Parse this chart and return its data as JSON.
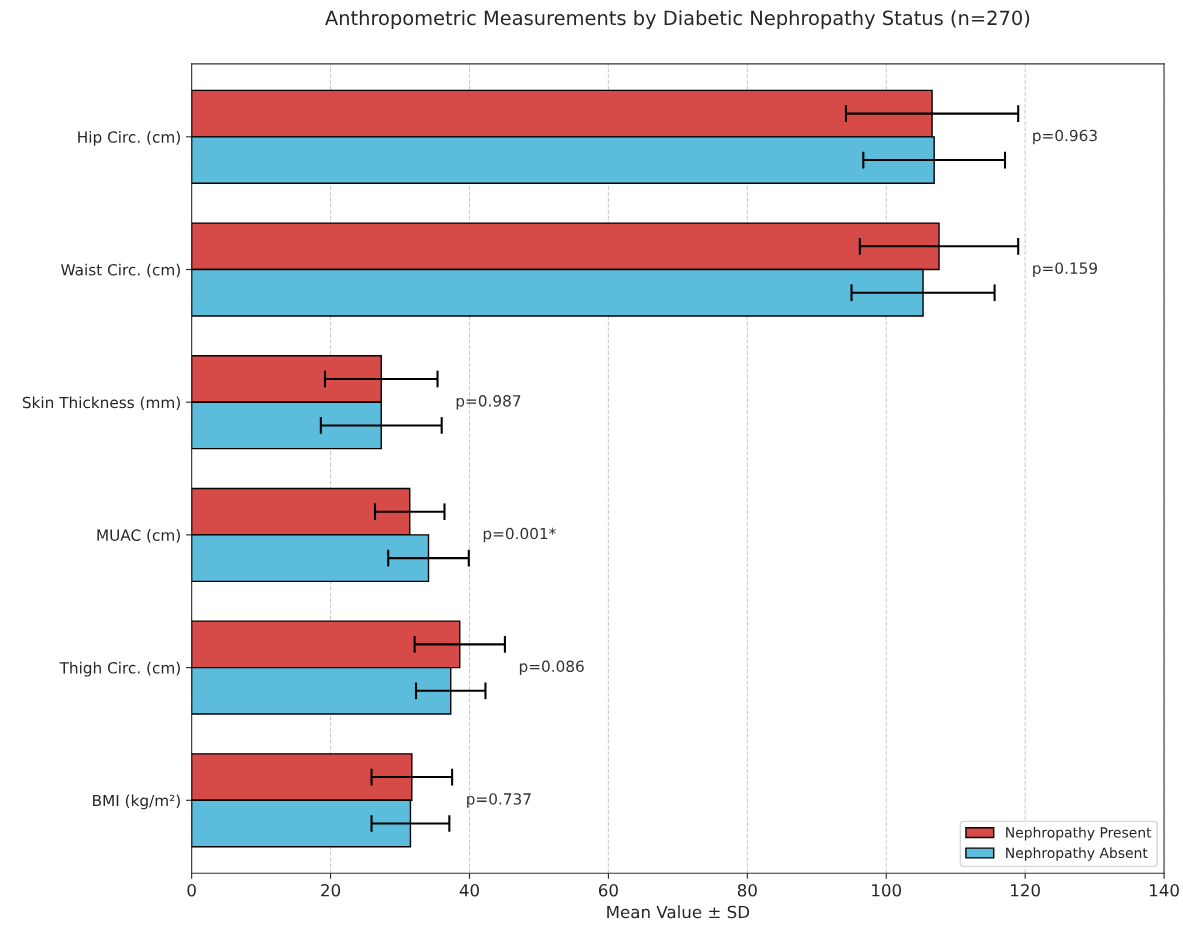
{
  "chart_data": {
    "type": "bar",
    "orientation": "horizontal",
    "title": "Anthropometric Measurements by Diabetic Nephropathy Status (n=270)",
    "xlabel": "Mean Value ± SD",
    "categories": [
      "Hip Circ. (cm)",
      "Waist Circ. (cm)",
      "Skin Thickness (mm)",
      "MUAC (cm)",
      "Thigh Circ. (cm)",
      "BMI (kg/m²)"
    ],
    "series": [
      {
        "name": "Nephropathy Present",
        "color": "#d64a48",
        "values": [
          106.6,
          107.6,
          27.3,
          31.4,
          38.6,
          31.7
        ],
        "errors": [
          12.4,
          11.4,
          8.1,
          5.0,
          6.5,
          5.8
        ]
      },
      {
        "name": "Nephropathy Absent",
        "color": "#5bbcdc",
        "values": [
          106.9,
          105.3,
          27.3,
          34.1,
          37.3,
          31.5
        ],
        "errors": [
          10.2,
          10.3,
          8.7,
          5.8,
          5.0,
          5.6
        ]
      }
    ],
    "xlim": [
      0,
      140
    ],
    "xticks": [
      0,
      20,
      40,
      60,
      80,
      100,
      120,
      140
    ],
    "grid": "x",
    "legend": "bottom right",
    "annotations": [
      "p=0.963",
      "p=0.159",
      "p=0.987",
      "p=0.001*",
      "p=0.086",
      "p=0.737"
    ]
  }
}
